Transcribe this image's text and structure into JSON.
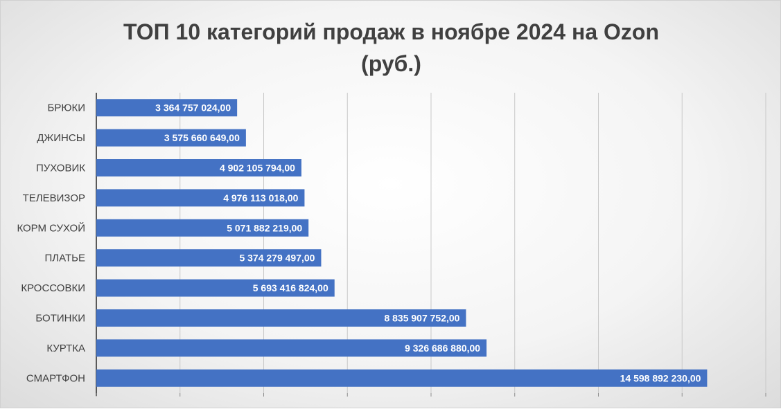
{
  "chart_data": {
    "type": "bar",
    "orientation": "horizontal",
    "title": "ТОП 10 категорий продаж в ноябре 2024 на Ozon",
    "subtitle": "(руб.)",
    "categories": [
      "БРЮКИ",
      "ДЖИНСЫ",
      "ПУХОВИК",
      "ТЕЛЕВИЗОР",
      "КОРМ СУХОЙ",
      "ПЛАТЬЕ",
      "КРОССОВКИ",
      "БОТИНКИ",
      "КУРТКА",
      "СМАРТФОН"
    ],
    "values": [
      3364757024.0,
      3575660649.0,
      4902105794.0,
      4976113018.0,
      5071882219.0,
      5374279497.0,
      5693416824.0,
      8835907752.0,
      9326686880.0,
      14598892230.0
    ],
    "value_labels": [
      "3 364 757 024,00",
      "3 575 660 649,00",
      "4 902 105 794,00",
      "4 976 113 018,00",
      "5 071 882 219,00",
      "5 374 279 497,00",
      "5 693 416 824,00",
      "8 835 907 752,00",
      "9 326 686 880,00",
      "14 598 892 230,00"
    ],
    "xlim": [
      0,
      16000000000
    ],
    "grid": true,
    "axis_tick_labels_visible": false,
    "bar_color": "#4472c4",
    "label_color": "#ffffff",
    "legend": "none"
  }
}
